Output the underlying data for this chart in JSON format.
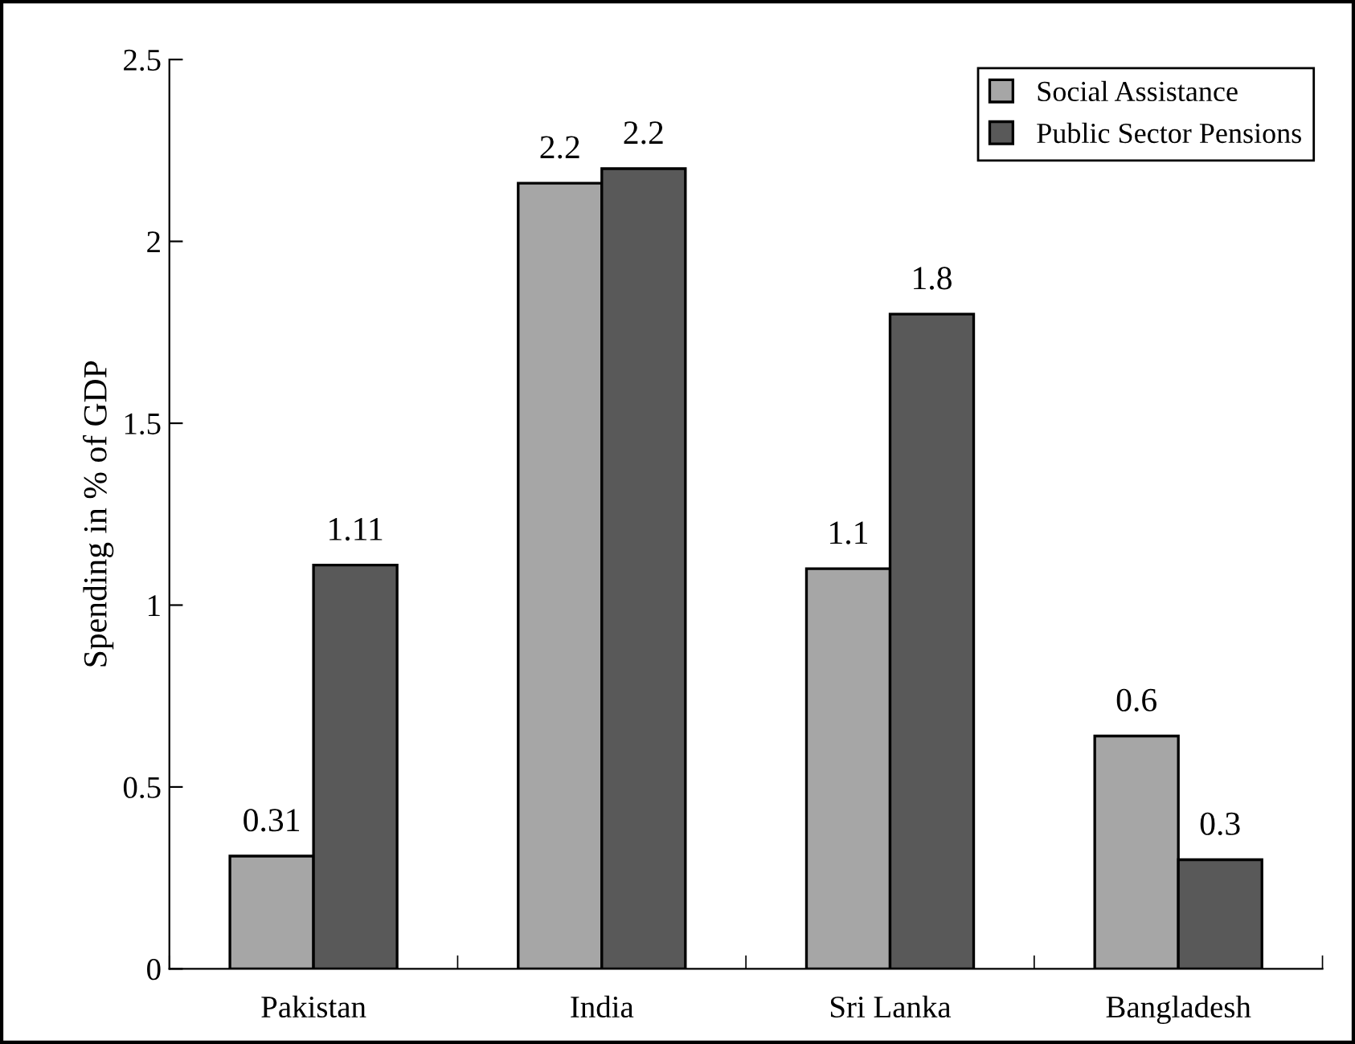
{
  "chart_data": {
    "type": "bar",
    "ylabel": "Spending in % of GDP",
    "categories": [
      "Pakistan",
      "India",
      "Sri Lanka",
      "Bangladesh"
    ],
    "series": [
      {
        "name": "Social Assistance",
        "color": "#a6a6a6",
        "values": [
          0.31,
          2.16,
          1.1,
          0.64
        ],
        "value_labels": [
          "0.31",
          "2.2",
          "1.1",
          "0.6"
        ]
      },
      {
        "name": "Public Sector Pensions",
        "color": "#595959",
        "values": [
          1.11,
          2.2,
          1.8,
          0.3
        ],
        "value_labels": [
          "1.11",
          "2.2",
          "1.8",
          "0.3"
        ]
      }
    ],
    "ylim": [
      0,
      2.5
    ],
    "yticks": [
      0,
      0.5,
      1,
      1.5,
      2,
      2.5
    ],
    "grid": false,
    "legend": "top right"
  }
}
